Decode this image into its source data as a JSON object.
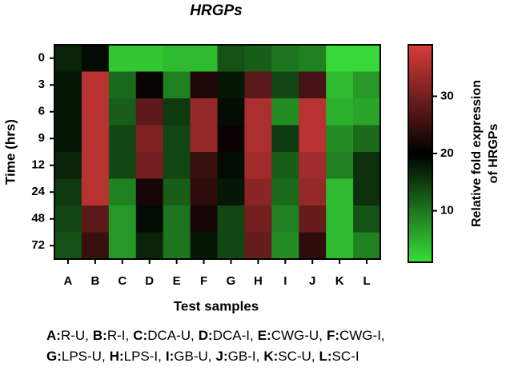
{
  "chart_data": {
    "type": "heatmap",
    "title": "HRGPs",
    "x_label": "Test samples",
    "y_label": "Time (hrs)",
    "categories": [
      "A",
      "B",
      "C",
      "D",
      "E",
      "F",
      "G",
      "H",
      "I",
      "J",
      "K",
      "L"
    ],
    "rows": [
      "0",
      "3",
      "6",
      "9",
      "12",
      "24",
      "48",
      "72"
    ],
    "values": [
      [
        17,
        19,
        3,
        3,
        4,
        4,
        13,
        12,
        10,
        9,
        1.5,
        1.5
      ],
      [
        18,
        36,
        11,
        20.5,
        9,
        23,
        18,
        28,
        14,
        26,
        4,
        7
      ],
      [
        18,
        36,
        12,
        28,
        15,
        33,
        19,
        35,
        8,
        36,
        5,
        6
      ],
      [
        18,
        36,
        14,
        31,
        14,
        33,
        21,
        35,
        15,
        36,
        8,
        11
      ],
      [
        17,
        36,
        14,
        30,
        14,
        25,
        19,
        34,
        12,
        34,
        9,
        16
      ],
      [
        15,
        36,
        9,
        22,
        12,
        24,
        18,
        32,
        11,
        33,
        4,
        16
      ],
      [
        14,
        28,
        7,
        19,
        10,
        22,
        14,
        30,
        9,
        29,
        4,
        13
      ],
      [
        13,
        25,
        7,
        17,
        10,
        18,
        14,
        29,
        8,
        24,
        4,
        9
      ]
    ],
    "colorbar_label": [
      "Relative fold expression",
      "of HRGPs"
    ],
    "clim": [
      1,
      39
    ],
    "cticks": [
      10,
      20,
      30
    ],
    "cmid": 20,
    "colors": {
      "low": "#38de38",
      "mid": "#000000",
      "high": "#da3b3b"
    },
    "footnote": [
      [
        {
          "key": "A:",
          "text": "R-U,"
        },
        {
          "key": "B:",
          "text": "R-I,"
        },
        {
          "key": "C:",
          "text": "DCA-U,"
        },
        {
          "key": "D:",
          "text": "DCA-I,"
        },
        {
          "key": "E:",
          "text": "CWG-U,"
        },
        {
          "key": "F:",
          "text": "CWG-I,"
        }
      ],
      [
        {
          "key": "G:",
          "text": "LPS-U,"
        },
        {
          "key": "H:",
          "text": "LPS-I,"
        },
        {
          "key": "I:",
          "text": "GB-U,"
        },
        {
          "key": "J:",
          "text": "GB-I,"
        },
        {
          "key": "K:",
          "text": "SC-U,"
        },
        {
          "key": "L:",
          "text": "SC-I"
        }
      ]
    ]
  }
}
